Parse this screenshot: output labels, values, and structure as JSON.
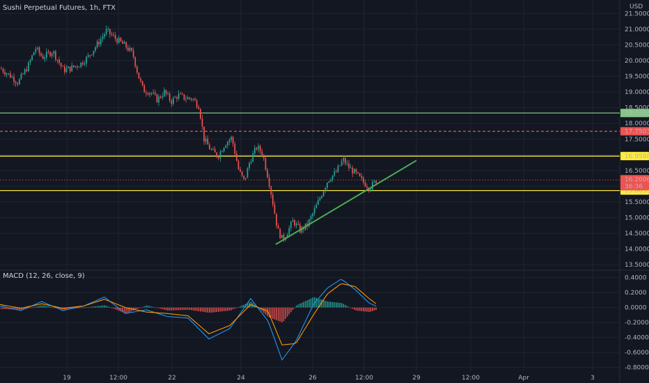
{
  "header": {
    "title": "Sushi Perpetual Futures, 1h, FTX",
    "currency": "USD",
    "macd_label": "MACD (12, 26, close, 9)"
  },
  "colors": {
    "background": "#131722",
    "grid": "#1f2433",
    "up": "#26a69a",
    "down": "#ef5350",
    "yellow_line": "#ffeb3b",
    "green_line": "#81c784",
    "trend_line": "#4caf50",
    "macd_line": "#2196f3",
    "signal_line": "#ff9800"
  },
  "chart_data": [
    {
      "type": "candlestick",
      "title": "Sushi Perpetual Futures, 1h, FTX",
      "y_axis_ticks": [
        "21.5000",
        "21.0000",
        "20.5000",
        "20.0000",
        "19.5000",
        "19.0000",
        "18.5000",
        "18.0000",
        "17.5000",
        "17.0000",
        "16.5000",
        "16.0000",
        "15.5000",
        "15.0000",
        "14.5000",
        "14.0000",
        "13.5000"
      ],
      "ylim": [
        13.35,
        21.75
      ],
      "x_ticks": [
        "19",
        "12:00",
        "22",
        "24",
        "26",
        "12:00",
        "29",
        "12:00",
        "Apr",
        "3"
      ],
      "horizontal_lines": [
        {
          "value": 18.3314,
          "label": "18.3314",
          "color": "#81c784",
          "style": "solid"
        },
        {
          "value": 17.7503,
          "label": "17.7503",
          "color": "#ef5350",
          "style": "dashed"
        },
        {
          "value": 16.9588,
          "label": "16.9588",
          "color": "#ffeb3b",
          "style": "solid"
        },
        {
          "value": 15.8635,
          "label": "15.8635",
          "color": "#ffeb3b",
          "style": "solid"
        }
      ],
      "current_price": {
        "value": 16.2006,
        "label": "16.2006",
        "countdown": "36:36"
      },
      "trend_line": {
        "from": {
          "bar": 396,
          "value": 14.15
        },
        "to": {
          "bar": 598,
          "value": 16.82
        }
      },
      "price_path": [
        [
          0,
          19.75
        ],
        [
          15,
          19.5
        ],
        [
          25,
          19.3
        ],
        [
          40,
          19.85
        ],
        [
          50,
          20.4
        ],
        [
          60,
          20.1
        ],
        [
          75,
          20.3
        ],
        [
          90,
          19.7
        ],
        [
          100,
          19.75
        ],
        [
          115,
          19.9
        ],
        [
          125,
          20.1
        ],
        [
          140,
          20.55
        ],
        [
          152,
          20.95
        ],
        [
          165,
          20.7
        ],
        [
          180,
          20.45
        ],
        [
          190,
          20.2
        ],
        [
          198,
          19.5
        ],
        [
          205,
          19.05
        ],
        [
          215,
          19.0
        ],
        [
          225,
          18.75
        ],
        [
          235,
          19.0
        ],
        [
          245,
          18.7
        ],
        [
          255,
          18.9
        ],
        [
          265,
          18.8
        ],
        [
          275,
          18.8
        ],
        [
          285,
          18.55
        ],
        [
          292,
          17.5
        ],
        [
          302,
          17.15
        ],
        [
          312,
          16.95
        ],
        [
          322,
          17.35
        ],
        [
          332,
          17.55
        ],
        [
          342,
          16.5
        ],
        [
          350,
          16.15
        ],
        [
          358,
          16.8
        ],
        [
          368,
          17.25
        ],
        [
          376,
          17.05
        ],
        [
          385,
          16.2
        ],
        [
          392,
          15.35
        ],
        [
          398,
          14.6
        ],
        [
          405,
          14.3
        ],
        [
          412,
          14.55
        ],
        [
          420,
          14.9
        ],
        [
          430,
          14.6
        ],
        [
          440,
          14.75
        ],
        [
          450,
          15.2
        ],
        [
          460,
          15.7
        ],
        [
          470,
          16.2
        ],
        [
          482,
          16.45
        ],
        [
          492,
          16.85
        ],
        [
          500,
          16.6
        ],
        [
          510,
          16.4
        ],
        [
          520,
          16.15
        ],
        [
          530,
          15.95
        ],
        [
          540,
          16.2
        ]
      ]
    },
    {
      "type": "line",
      "title": "MACD (12, 26, close, 9)",
      "y_axis_ticks": [
        "0.4000",
        "0.2000",
        "0.0000",
        "-0.2000",
        "-0.4000",
        "-0.6000",
        "-0.8000"
      ],
      "ylim": [
        -0.85,
        0.48
      ],
      "series": [
        {
          "name": "MACD",
          "color": "#2196f3",
          "points": [
            [
              0,
              0.02
            ],
            [
              30,
              -0.04
            ],
            [
              60,
              0.08
            ],
            [
              90,
              -0.04
            ],
            [
              120,
              0.02
            ],
            [
              150,
              0.14
            ],
            [
              180,
              -0.08
            ],
            [
              210,
              -0.03
            ],
            [
              240,
              -0.12
            ],
            [
              270,
              -0.14
            ],
            [
              300,
              -0.42
            ],
            [
              330,
              -0.28
            ],
            [
              360,
              0.12
            ],
            [
              385,
              -0.18
            ],
            [
              405,
              -0.7
            ],
            [
              425,
              -0.45
            ],
            [
              450,
              0.04
            ],
            [
              470,
              0.26
            ],
            [
              490,
              0.38
            ],
            [
              510,
              0.24
            ],
            [
              530,
              0.06
            ],
            [
              540,
              0.02
            ]
          ]
        },
        {
          "name": "Signal",
          "color": "#ff9800",
          "points": [
            [
              0,
              0.04
            ],
            [
              30,
              -0.01
            ],
            [
              60,
              0.05
            ],
            [
              90,
              -0.01
            ],
            [
              120,
              0.02
            ],
            [
              150,
              0.11
            ],
            [
              180,
              0.0
            ],
            [
              210,
              -0.06
            ],
            [
              240,
              -0.08
            ],
            [
              270,
              -0.11
            ],
            [
              300,
              -0.35
            ],
            [
              330,
              -0.24
            ],
            [
              360,
              0.04
            ],
            [
              385,
              -0.05
            ],
            [
              405,
              -0.5
            ],
            [
              425,
              -0.48
            ],
            [
              450,
              -0.1
            ],
            [
              470,
              0.18
            ],
            [
              490,
              0.32
            ],
            [
              510,
              0.28
            ],
            [
              530,
              0.12
            ],
            [
              540,
              0.05
            ]
          ]
        }
      ]
    }
  ]
}
